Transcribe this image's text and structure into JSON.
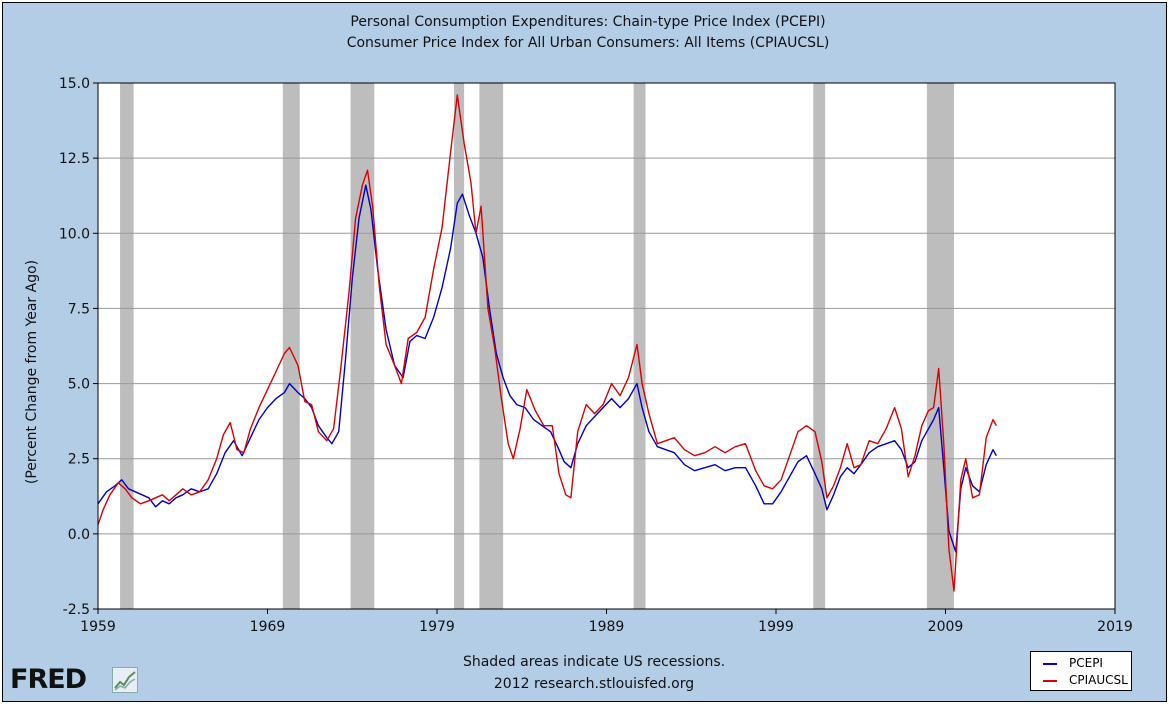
{
  "chart_data": {
    "type": "line",
    "title": "Personal Consumption Expenditures: Chain-type Price Index (PCEPI)",
    "subtitle": "Consumer Price Index for All Urban Consumers: All Items (CPIAUCSL)",
    "ylabel": "(Percent Change from Year Ago)",
    "xlabel": "",
    "xlim": [
      1959,
      2019
    ],
    "ylim": [
      -2.5,
      15.0
    ],
    "x_ticks": [
      "1959",
      "1969",
      "1979",
      "1989",
      "1999",
      "2009",
      "2019"
    ],
    "y_ticks": [
      "15.0",
      "12.5",
      "10.0",
      "7.5",
      "5.0",
      "2.5",
      "0.0",
      "-2.5"
    ],
    "grid": "horizontal",
    "legend_position": "bottom-right",
    "footnote": "Shaded areas indicate US recessions.",
    "source": "2012 research.stlouisfed.org",
    "logo": "FRED",
    "recessions": [
      [
        1960.3,
        1961.1
      ],
      [
        1969.9,
        1970.9
      ],
      [
        1973.9,
        1975.3
      ],
      [
        1980.0,
        1980.6
      ],
      [
        1981.5,
        1982.9
      ],
      [
        1990.6,
        1991.3
      ],
      [
        2001.2,
        2001.9
      ],
      [
        2007.9,
        2009.5
      ]
    ],
    "series": [
      {
        "name": "PCEPI",
        "color": "#0000cc",
        "points": [
          [
            1959.0,
            1.0
          ],
          [
            1959.5,
            1.4
          ],
          [
            1960.0,
            1.6
          ],
          [
            1960.4,
            1.8
          ],
          [
            1960.8,
            1.5
          ],
          [
            1961.2,
            1.4
          ],
          [
            1961.6,
            1.3
          ],
          [
            1962.0,
            1.2
          ],
          [
            1962.4,
            0.9
          ],
          [
            1962.8,
            1.1
          ],
          [
            1963.2,
            1.0
          ],
          [
            1963.6,
            1.2
          ],
          [
            1964.0,
            1.3
          ],
          [
            1964.5,
            1.5
          ],
          [
            1965.0,
            1.4
          ],
          [
            1965.5,
            1.5
          ],
          [
            1966.0,
            2.0
          ],
          [
            1966.5,
            2.7
          ],
          [
            1967.0,
            3.1
          ],
          [
            1967.5,
            2.6
          ],
          [
            1968.0,
            3.2
          ],
          [
            1968.5,
            3.8
          ],
          [
            1969.0,
            4.2
          ],
          [
            1969.5,
            4.5
          ],
          [
            1970.0,
            4.7
          ],
          [
            1970.3,
            5.0
          ],
          [
            1970.8,
            4.7
          ],
          [
            1971.2,
            4.5
          ],
          [
            1971.6,
            4.2
          ],
          [
            1972.0,
            3.6
          ],
          [
            1972.5,
            3.2
          ],
          [
            1972.8,
            3.0
          ],
          [
            1973.2,
            3.4
          ],
          [
            1973.6,
            5.8
          ],
          [
            1974.0,
            8.5
          ],
          [
            1974.4,
            10.5
          ],
          [
            1974.8,
            11.6
          ],
          [
            1975.1,
            10.8
          ],
          [
            1975.5,
            8.8
          ],
          [
            1976.0,
            6.8
          ],
          [
            1976.5,
            5.6
          ],
          [
            1977.0,
            5.2
          ],
          [
            1977.4,
            6.4
          ],
          [
            1977.8,
            6.6
          ],
          [
            1978.3,
            6.5
          ],
          [
            1978.8,
            7.2
          ],
          [
            1979.3,
            8.2
          ],
          [
            1979.8,
            9.5
          ],
          [
            1980.2,
            11.0
          ],
          [
            1980.5,
            11.3
          ],
          [
            1980.9,
            10.6
          ],
          [
            1981.3,
            10.0
          ],
          [
            1981.7,
            9.2
          ],
          [
            1982.1,
            7.5
          ],
          [
            1982.5,
            6.0
          ],
          [
            1982.9,
            5.2
          ],
          [
            1983.3,
            4.6
          ],
          [
            1983.7,
            4.3
          ],
          [
            1984.2,
            4.2
          ],
          [
            1984.7,
            3.8
          ],
          [
            1985.2,
            3.6
          ],
          [
            1985.7,
            3.4
          ],
          [
            1986.2,
            2.8
          ],
          [
            1986.5,
            2.4
          ],
          [
            1986.9,
            2.2
          ],
          [
            1987.3,
            3.0
          ],
          [
            1987.8,
            3.6
          ],
          [
            1988.3,
            3.9
          ],
          [
            1988.8,
            4.2
          ],
          [
            1989.3,
            4.5
          ],
          [
            1989.8,
            4.2
          ],
          [
            1990.3,
            4.5
          ],
          [
            1990.8,
            5.0
          ],
          [
            1991.1,
            4.2
          ],
          [
            1991.5,
            3.4
          ],
          [
            1992.0,
            2.9
          ],
          [
            1992.5,
            2.8
          ],
          [
            1993.0,
            2.7
          ],
          [
            1993.6,
            2.3
          ],
          [
            1994.2,
            2.1
          ],
          [
            1994.8,
            2.2
          ],
          [
            1995.4,
            2.3
          ],
          [
            1996.0,
            2.1
          ],
          [
            1996.6,
            2.2
          ],
          [
            1997.2,
            2.2
          ],
          [
            1997.8,
            1.6
          ],
          [
            1998.3,
            1.0
          ],
          [
            1998.8,
            1.0
          ],
          [
            1999.3,
            1.4
          ],
          [
            1999.8,
            1.9
          ],
          [
            2000.3,
            2.4
          ],
          [
            2000.8,
            2.6
          ],
          [
            2001.3,
            2.0
          ],
          [
            2001.7,
            1.5
          ],
          [
            2002.0,
            0.8
          ],
          [
            2002.4,
            1.3
          ],
          [
            2002.8,
            1.9
          ],
          [
            2003.2,
            2.2
          ],
          [
            2003.6,
            2.0
          ],
          [
            2004.0,
            2.3
          ],
          [
            2004.5,
            2.7
          ],
          [
            2005.0,
            2.9
          ],
          [
            2005.5,
            3.0
          ],
          [
            2006.0,
            3.1
          ],
          [
            2006.4,
            2.8
          ],
          [
            2006.8,
            2.2
          ],
          [
            2007.2,
            2.4
          ],
          [
            2007.6,
            3.1
          ],
          [
            2008.0,
            3.5
          ],
          [
            2008.3,
            3.8
          ],
          [
            2008.6,
            4.2
          ],
          [
            2008.9,
            2.2
          ],
          [
            2009.2,
            0.1
          ],
          [
            2009.6,
            -0.6
          ],
          [
            2009.9,
            1.5
          ],
          [
            2010.2,
            2.2
          ],
          [
            2010.6,
            1.6
          ],
          [
            2011.0,
            1.4
          ],
          [
            2011.4,
            2.3
          ],
          [
            2011.8,
            2.8
          ],
          [
            2012.0,
            2.6
          ]
        ]
      },
      {
        "name": "CPIAUCSL",
        "color": "#dd0000",
        "points": [
          [
            1959.0,
            0.3
          ],
          [
            1959.3,
            0.8
          ],
          [
            1959.7,
            1.3
          ],
          [
            1960.2,
            1.7
          ],
          [
            1960.6,
            1.5
          ],
          [
            1961.0,
            1.2
          ],
          [
            1961.5,
            1.0
          ],
          [
            1962.0,
            1.1
          ],
          [
            1962.4,
            1.2
          ],
          [
            1962.8,
            1.3
          ],
          [
            1963.2,
            1.1
          ],
          [
            1963.6,
            1.3
          ],
          [
            1964.0,
            1.5
          ],
          [
            1964.5,
            1.3
          ],
          [
            1965.0,
            1.4
          ],
          [
            1965.5,
            1.8
          ],
          [
            1966.0,
            2.5
          ],
          [
            1966.4,
            3.3
          ],
          [
            1966.8,
            3.7
          ],
          [
            1967.2,
            2.8
          ],
          [
            1967.6,
            2.7
          ],
          [
            1968.0,
            3.5
          ],
          [
            1968.5,
            4.2
          ],
          [
            1969.0,
            4.8
          ],
          [
            1969.5,
            5.4
          ],
          [
            1970.0,
            6.0
          ],
          [
            1970.3,
            6.2
          ],
          [
            1970.8,
            5.6
          ],
          [
            1971.2,
            4.4
          ],
          [
            1971.6,
            4.3
          ],
          [
            1972.0,
            3.4
          ],
          [
            1972.5,
            3.1
          ],
          [
            1972.9,
            3.5
          ],
          [
            1973.3,
            5.4
          ],
          [
            1973.8,
            8.0
          ],
          [
            1974.2,
            10.5
          ],
          [
            1974.6,
            11.6
          ],
          [
            1974.9,
            12.1
          ],
          [
            1975.2,
            10.9
          ],
          [
            1975.6,
            8.2
          ],
          [
            1976.0,
            6.3
          ],
          [
            1976.5,
            5.6
          ],
          [
            1976.9,
            5.0
          ],
          [
            1977.3,
            6.5
          ],
          [
            1977.8,
            6.7
          ],
          [
            1978.3,
            7.2
          ],
          [
            1978.8,
            8.8
          ],
          [
            1979.3,
            10.2
          ],
          [
            1979.8,
            12.7
          ],
          [
            1980.2,
            14.6
          ],
          [
            1980.6,
            13.0
          ],
          [
            1981.0,
            11.7
          ],
          [
            1981.3,
            10.0
          ],
          [
            1981.6,
            10.9
          ],
          [
            1982.0,
            7.5
          ],
          [
            1982.4,
            6.2
          ],
          [
            1982.8,
            4.5
          ],
          [
            1983.2,
            3.0
          ],
          [
            1983.5,
            2.5
          ],
          [
            1983.9,
            3.5
          ],
          [
            1984.3,
            4.8
          ],
          [
            1984.8,
            4.1
          ],
          [
            1985.3,
            3.6
          ],
          [
            1985.8,
            3.6
          ],
          [
            1986.2,
            2.0
          ],
          [
            1986.6,
            1.3
          ],
          [
            1986.9,
            1.2
          ],
          [
            1987.3,
            3.4
          ],
          [
            1987.8,
            4.3
          ],
          [
            1988.3,
            4.0
          ],
          [
            1988.8,
            4.3
          ],
          [
            1989.3,
            5.0
          ],
          [
            1989.8,
            4.6
          ],
          [
            1990.3,
            5.2
          ],
          [
            1990.8,
            6.3
          ],
          [
            1991.1,
            5.0
          ],
          [
            1991.5,
            4.0
          ],
          [
            1992.0,
            3.0
          ],
          [
            1992.5,
            3.1
          ],
          [
            1993.0,
            3.2
          ],
          [
            1993.6,
            2.8
          ],
          [
            1994.2,
            2.6
          ],
          [
            1994.8,
            2.7
          ],
          [
            1995.4,
            2.9
          ],
          [
            1996.0,
            2.7
          ],
          [
            1996.6,
            2.9
          ],
          [
            1997.2,
            3.0
          ],
          [
            1997.8,
            2.1
          ],
          [
            1998.3,
            1.6
          ],
          [
            1998.8,
            1.5
          ],
          [
            1999.3,
            1.8
          ],
          [
            1999.8,
            2.6
          ],
          [
            2000.3,
            3.4
          ],
          [
            2000.8,
            3.6
          ],
          [
            2001.3,
            3.4
          ],
          [
            2001.7,
            2.4
          ],
          [
            2002.0,
            1.2
          ],
          [
            2002.4,
            1.6
          ],
          [
            2002.8,
            2.2
          ],
          [
            2003.2,
            3.0
          ],
          [
            2003.6,
            2.2
          ],
          [
            2004.0,
            2.3
          ],
          [
            2004.5,
            3.1
          ],
          [
            2005.0,
            3.0
          ],
          [
            2005.5,
            3.5
          ],
          [
            2006.0,
            4.2
          ],
          [
            2006.4,
            3.5
          ],
          [
            2006.8,
            1.9
          ],
          [
            2007.2,
            2.6
          ],
          [
            2007.6,
            3.6
          ],
          [
            2008.0,
            4.1
          ],
          [
            2008.3,
            4.2
          ],
          [
            2008.6,
            5.5
          ],
          [
            2008.9,
            3.0
          ],
          [
            2009.2,
            -0.5
          ],
          [
            2009.5,
            -1.9
          ],
          [
            2009.9,
            1.8
          ],
          [
            2010.2,
            2.5
          ],
          [
            2010.6,
            1.2
          ],
          [
            2011.0,
            1.3
          ],
          [
            2011.4,
            3.2
          ],
          [
            2011.8,
            3.8
          ],
          [
            2012.0,
            3.6
          ]
        ]
      }
    ]
  }
}
